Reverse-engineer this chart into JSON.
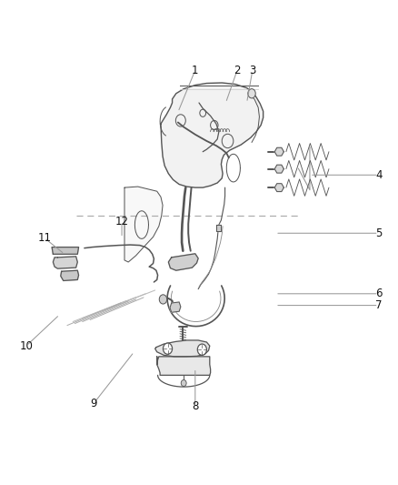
{
  "bg_color": "#ffffff",
  "fig_width": 4.38,
  "fig_height": 5.33,
  "dpi": 100,
  "dc": "#555555",
  "lc": "#999999",
  "lw": 0.9,
  "labels": [
    {
      "num": "1",
      "xl": 0.49,
      "yl": 0.87,
      "xn": 0.445,
      "yn": 0.78
    },
    {
      "num": "2",
      "xl": 0.6,
      "yl": 0.87,
      "xn": 0.57,
      "yn": 0.8
    },
    {
      "num": "3",
      "xl": 0.64,
      "yl": 0.87,
      "xn": 0.625,
      "yn": 0.8
    },
    {
      "num": "4",
      "xl": 0.97,
      "yl": 0.645,
      "xn": 0.79,
      "yn": 0.645
    },
    {
      "num": "5",
      "xl": 0.97,
      "yl": 0.52,
      "xn": 0.7,
      "yn": 0.52
    },
    {
      "num": "6",
      "xl": 0.97,
      "yl": 0.39,
      "xn": 0.7,
      "yn": 0.39
    },
    {
      "num": "7",
      "xl": 0.97,
      "yl": 0.365,
      "xn": 0.7,
      "yn": 0.365
    },
    {
      "num": "8",
      "xl": 0.49,
      "yl": 0.148,
      "xn": 0.49,
      "yn": 0.23
    },
    {
      "num": "9",
      "xl": 0.225,
      "yl": 0.155,
      "xn": 0.33,
      "yn": 0.265
    },
    {
      "num": "10",
      "xl": 0.048,
      "yl": 0.278,
      "xn": 0.135,
      "yn": 0.345
    },
    {
      "num": "11",
      "xl": 0.095,
      "yl": 0.51,
      "xn": 0.148,
      "yn": 0.475
    },
    {
      "num": "12",
      "xl": 0.298,
      "yl": 0.545,
      "xn": 0.298,
      "yn": 0.51
    }
  ],
  "label_fontsize": 8.5
}
